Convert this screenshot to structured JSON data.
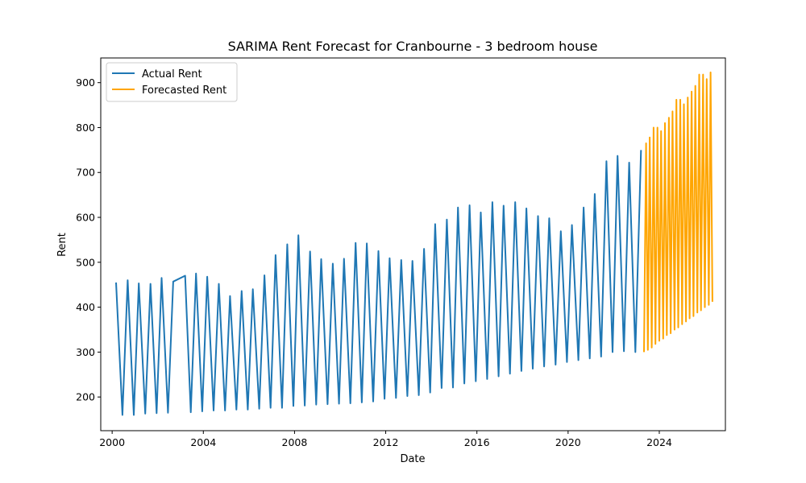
{
  "chart_data": {
    "type": "line",
    "title": "SARIMA Rent Forecast for Cranbourne - 3 bedroom house",
    "xlabel": "Date",
    "ylabel": "Rent",
    "xlim": [
      1999.5,
      2026.9
    ],
    "ylim": [
      125,
      955
    ],
    "x_ticks": [
      2000,
      2004,
      2008,
      2012,
      2016,
      2020,
      2024
    ],
    "x_tick_labels": [
      "2000",
      "2004",
      "2008",
      "2012",
      "2016",
      "2020",
      "2024"
    ],
    "y_ticks": [
      200,
      300,
      400,
      500,
      600,
      700,
      800,
      900
    ],
    "y_tick_labels": [
      "200",
      "300",
      "400",
      "500",
      "600",
      "700",
      "800",
      "900"
    ],
    "grid": false,
    "legend_position": "top-left",
    "series": [
      {
        "name": "Actual Rent",
        "color": "#1f77b4",
        "points": [
          [
            2000.17,
            455
          ],
          [
            2000.45,
            160
          ],
          [
            2000.68,
            460
          ],
          [
            2000.95,
            160
          ],
          [
            2001.17,
            453
          ],
          [
            2001.45,
            163
          ],
          [
            2001.68,
            452
          ],
          [
            2001.95,
            164
          ],
          [
            2002.17,
            465
          ],
          [
            2002.45,
            165
          ],
          [
            2002.68,
            457
          ],
          [
            2003.2,
            470
          ],
          [
            2003.45,
            166
          ],
          [
            2003.68,
            475
          ],
          [
            2003.95,
            168
          ],
          [
            2004.17,
            468
          ],
          [
            2004.45,
            170
          ],
          [
            2004.68,
            452
          ],
          [
            2004.95,
            170
          ],
          [
            2005.17,
            425
          ],
          [
            2005.45,
            172
          ],
          [
            2005.68,
            436
          ],
          [
            2005.95,
            172
          ],
          [
            2006.17,
            440
          ],
          [
            2006.45,
            174
          ],
          [
            2006.68,
            471
          ],
          [
            2006.95,
            176
          ],
          [
            2007.17,
            516
          ],
          [
            2007.45,
            176
          ],
          [
            2007.68,
            540
          ],
          [
            2007.95,
            180
          ],
          [
            2008.17,
            560
          ],
          [
            2008.45,
            181
          ],
          [
            2008.68,
            524
          ],
          [
            2008.95,
            183
          ],
          [
            2009.17,
            507
          ],
          [
            2009.45,
            184
          ],
          [
            2009.68,
            497
          ],
          [
            2009.95,
            185
          ],
          [
            2010.17,
            508
          ],
          [
            2010.45,
            186
          ],
          [
            2010.68,
            543
          ],
          [
            2010.95,
            188
          ],
          [
            2011.17,
            542
          ],
          [
            2011.45,
            190
          ],
          [
            2011.68,
            525
          ],
          [
            2011.95,
            196
          ],
          [
            2012.17,
            509
          ],
          [
            2012.45,
            198
          ],
          [
            2012.68,
            505
          ],
          [
            2012.95,
            202
          ],
          [
            2013.17,
            503
          ],
          [
            2013.45,
            204
          ],
          [
            2013.68,
            530
          ],
          [
            2013.95,
            210
          ],
          [
            2014.17,
            585
          ],
          [
            2014.45,
            220
          ],
          [
            2014.68,
            595
          ],
          [
            2014.95,
            221
          ],
          [
            2015.17,
            622
          ],
          [
            2015.45,
            230
          ],
          [
            2015.68,
            627
          ],
          [
            2015.95,
            235
          ],
          [
            2016.17,
            611
          ],
          [
            2016.45,
            240
          ],
          [
            2016.68,
            634
          ],
          [
            2016.95,
            246
          ],
          [
            2017.17,
            626
          ],
          [
            2017.45,
            252
          ],
          [
            2017.68,
            634
          ],
          [
            2017.95,
            258
          ],
          [
            2018.17,
            620
          ],
          [
            2018.45,
            263
          ],
          [
            2018.68,
            603
          ],
          [
            2018.95,
            268
          ],
          [
            2019.17,
            598
          ],
          [
            2019.45,
            272
          ],
          [
            2019.68,
            569
          ],
          [
            2019.95,
            278
          ],
          [
            2020.17,
            583
          ],
          [
            2020.45,
            282
          ],
          [
            2020.68,
            622
          ],
          [
            2020.95,
            286
          ],
          [
            2021.17,
            652
          ],
          [
            2021.45,
            290
          ],
          [
            2021.68,
            725
          ],
          [
            2021.95,
            300
          ],
          [
            2022.17,
            737
          ],
          [
            2022.45,
            302
          ],
          [
            2022.68,
            722
          ],
          [
            2022.95,
            300
          ],
          [
            2023.2,
            750
          ]
        ]
      },
      {
        "name": "Forecasted Rent",
        "color": "#ffa500",
        "points": [
          [
            2023.33,
            300
          ],
          [
            2023.42,
            765
          ],
          [
            2023.5,
            305
          ],
          [
            2023.58,
            778
          ],
          [
            2023.67,
            310
          ],
          [
            2023.75,
            800
          ],
          [
            2023.83,
            318
          ],
          [
            2023.92,
            800
          ],
          [
            2024.0,
            325
          ],
          [
            2024.08,
            792
          ],
          [
            2024.17,
            330
          ],
          [
            2024.25,
            810
          ],
          [
            2024.33,
            338
          ],
          [
            2024.42,
            822
          ],
          [
            2024.5,
            342
          ],
          [
            2024.58,
            836
          ],
          [
            2024.67,
            350
          ],
          [
            2024.75,
            862
          ],
          [
            2024.83,
            355
          ],
          [
            2024.92,
            862
          ],
          [
            2025.0,
            362
          ],
          [
            2025.08,
            852
          ],
          [
            2025.17,
            368
          ],
          [
            2025.25,
            867
          ],
          [
            2025.33,
            375
          ],
          [
            2025.42,
            880
          ],
          [
            2025.5,
            380
          ],
          [
            2025.58,
            893
          ],
          [
            2025.67,
            388
          ],
          [
            2025.75,
            918
          ],
          [
            2025.83,
            393
          ],
          [
            2025.92,
            918
          ],
          [
            2026.0,
            400
          ],
          [
            2026.08,
            908
          ],
          [
            2026.17,
            405
          ],
          [
            2026.25,
            923
          ],
          [
            2026.33,
            412
          ]
        ]
      }
    ]
  }
}
